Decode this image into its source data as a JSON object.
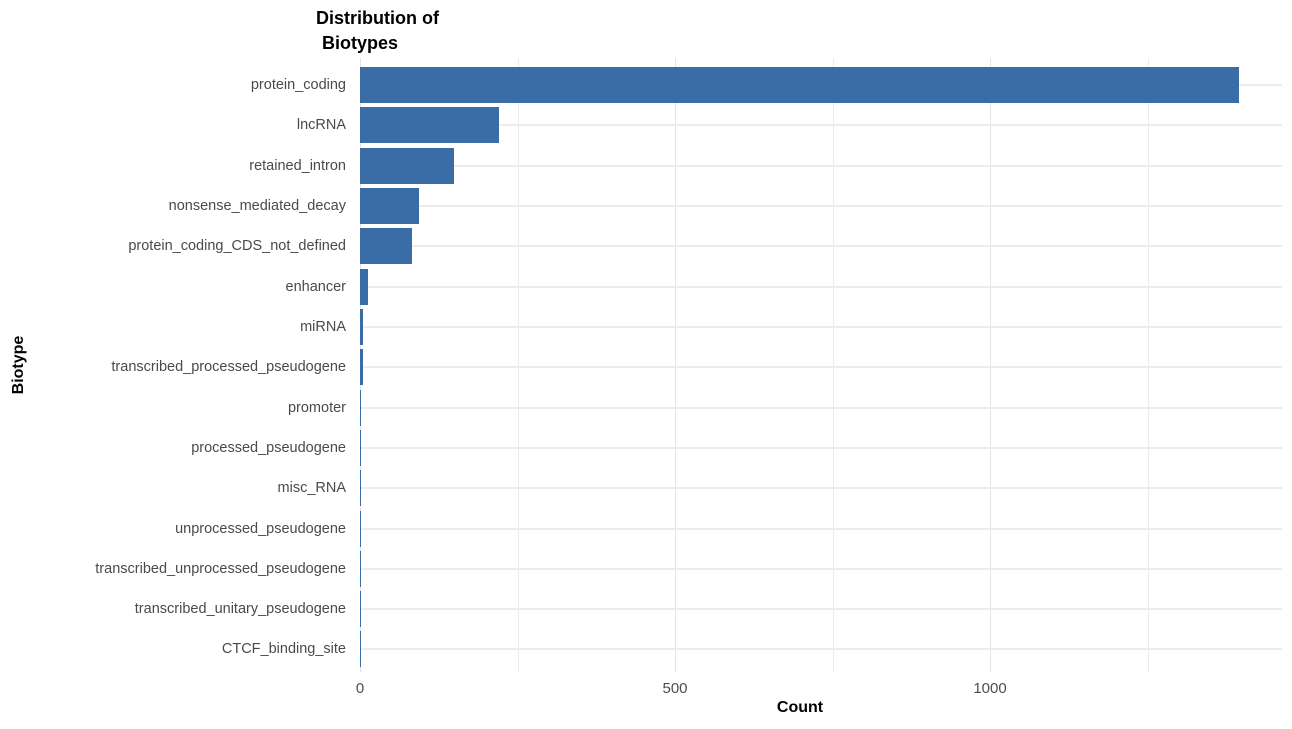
{
  "chart_data": {
    "type": "bar",
    "orientation": "horizontal",
    "title": "Distribution of Biotypes",
    "title_lines": [
      "Distribution of",
      "Biotypes"
    ],
    "xlabel": "Count",
    "ylabel": "Biotype",
    "categories": [
      "protein_coding",
      "lncRNA",
      "retained_intron",
      "nonsense_mediated_decay",
      "protein_coding_CDS_not_defined",
      "enhancer",
      "miRNA",
      "transcribed_processed_pseudogene",
      "promoter",
      "processed_pseudogene",
      "misc_RNA",
      "unprocessed_pseudogene",
      "transcribed_unprocessed_pseudogene",
      "transcribed_unitary_pseudogene",
      "CTCF_binding_site"
    ],
    "values": [
      1395,
      220,
      149,
      94,
      83,
      13,
      5,
      4,
      2,
      2,
      2,
      2,
      2,
      1,
      1
    ],
    "xlim": [
      0,
      1460
    ],
    "x_ticks": [
      0,
      500,
      1000
    ],
    "x_tick_labels": [
      "0",
      "500",
      "1000"
    ],
    "x_minor_gridlines": [
      250,
      750,
      1250
    ],
    "bar_color": "#3A6CA6",
    "grid": true,
    "legend": false,
    "background": "#FFFFFF",
    "label_color": "#4A4A4A"
  }
}
